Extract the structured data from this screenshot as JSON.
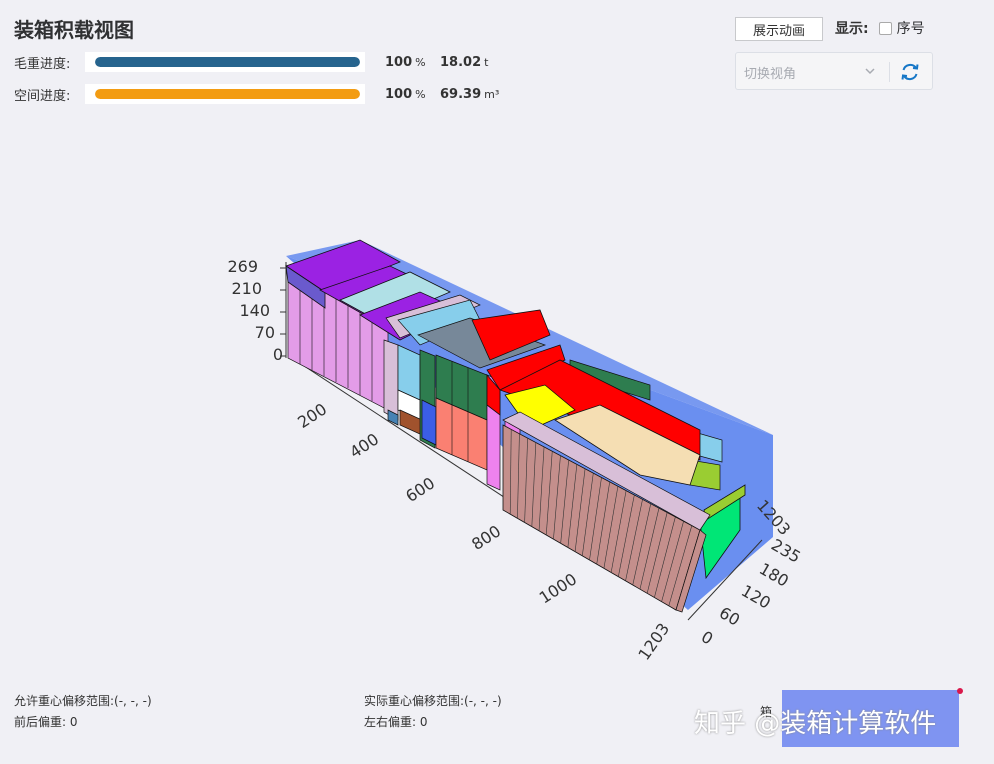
{
  "header": {
    "title": "装箱积载视图"
  },
  "progress": [
    {
      "label": "毛重进度:",
      "percent": 100,
      "percent_unit": "%",
      "value": "18.02",
      "unit": "t",
      "color": "#26648e"
    },
    {
      "label": "空间进度:",
      "percent": 100,
      "percent_unit": "%",
      "value": "69.39",
      "unit": "m³",
      "color": "#f39c12"
    }
  ],
  "controls": {
    "animate_label": "展示动画",
    "display_label": "显示:",
    "seq_label": "序号",
    "seq_checked": false,
    "view_placeholder": "切换视角",
    "refresh_icon": "refresh-icon"
  },
  "plot": {
    "z_ticks": [
      "269",
      "210",
      "140",
      "70",
      "0"
    ],
    "x_ticks": [
      "200",
      "400",
      "600",
      "800",
      "1000",
      "1203"
    ],
    "y_ticks": [
      "0",
      "60",
      "120",
      "180",
      "235"
    ],
    "far_corner_label": "1203",
    "bg_color": "#6a8ff0"
  },
  "footer": {
    "allowed_cg": "允许重心偏移范围:(-, -, -)",
    "actual_cg": "实际重心偏移范围:(-, -, -)",
    "fb_offset": "前后偏重: 0",
    "lr_offset": "左右偏重: 0",
    "watermark": "知乎 @装箱计算软件",
    "fragment": "箱"
  }
}
